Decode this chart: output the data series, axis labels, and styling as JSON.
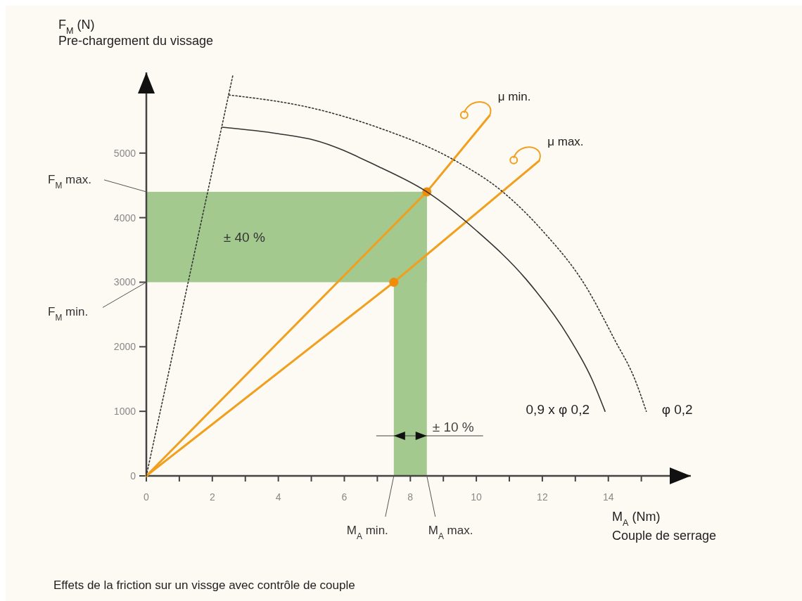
{
  "chart_data": {
    "type": "line",
    "xlabel": "M$_{A}$ (Nm)\nCouple de serrage",
    "ylabel": "F$_{M}$ (N)\nPre-chargement du vissage",
    "xlim": [
      0,
      16.5
    ],
    "ylim": [
      0,
      6250
    ],
    "xticks": [
      0,
      {
        "value": 1,
        "label": null
      },
      2,
      {
        "value": 3,
        "label": null
      },
      4,
      {
        "value": 5,
        "label": null
      },
      6,
      {
        "value": 7,
        "label": null
      },
      8,
      {
        "value": 9,
        "label": null
      },
      10,
      {
        "value": 11,
        "label": null
      },
      12,
      {
        "value": 13,
        "label": null
      },
      14,
      {
        "value": 15,
        "label": null
      }
    ],
    "yticks": [
      0,
      1000,
      2000,
      3000,
      4000,
      5000
    ],
    "series": [
      {
        "name": "μ min.",
        "color": "#f0a01e",
        "x": [
          0,
          8.5,
          10.4
        ],
        "values": [
          0,
          4400,
          5580
        ],
        "marker": "none",
        "line_style": "solid"
      },
      {
        "name": "μ max.",
        "color": "#f0a01e",
        "x": [
          0,
          7.5,
          11.9
        ],
        "values": [
          0,
          3000,
          4880
        ],
        "marker": "none",
        "line_style": "solid"
      },
      {
        "type": "scatter",
        "color": "#f08c0a",
        "x": [
          8.5,
          7.5
        ],
        "values": [
          4400,
          3000
        ],
        "marker": "circle"
      },
      {
        "name": "0,9 x φ 0,2",
        "color": "#333333",
        "x": [
          2.3,
          4,
          5.1,
          7,
          8.5,
          10,
          11.5,
          12.8,
          13.5,
          13.9
        ],
        "values": [
          5400,
          5300,
          5200,
          4800,
          4400,
          3800,
          3050,
          2150,
          1500,
          1000
        ],
        "marker": "none",
        "line_style": "solid"
      },
      {
        "name": "φ 0,2",
        "color": "#333333",
        "x": [
          2.5,
          5,
          7,
          9.3,
          10.8,
          12,
          13.3,
          14.2,
          14.8,
          15.15
        ],
        "values": [
          5900,
          5700,
          5400,
          4900,
          4400,
          3800,
          2950,
          2100,
          1500,
          1000
        ],
        "marker": "none",
        "line_style": "dotted"
      },
      {
        "color": "#333333",
        "x": [
          0,
          2.62
        ],
        "values": [
          0,
          6200
        ],
        "marker": "none",
        "line_style": "dotted"
      }
    ],
    "bands": [
      {
        "axis": "y",
        "from": 3000,
        "to": 4400,
        "label": "± 40 %",
        "color": "#a3c98f"
      },
      {
        "axis": "x",
        "from": 7.5,
        "to": 8.5,
        "label": "± 10 %",
        "color": "#a3c98f"
      }
    ],
    "annotations": [
      {
        "text": "F$_{M}$ max.",
        "x": 0,
        "y": 4400
      },
      {
        "text": "F$_{M}$ min.",
        "x": 0,
        "y": 3000
      },
      {
        "text": "M$_{A}$ min.",
        "x": 7.5,
        "y": 0
      },
      {
        "text": "M$_{A}$ max.",
        "x": 8.5,
        "y": 0
      },
      "Effets de la friction sur un vissge avec contrôle de couple"
    ]
  }
}
